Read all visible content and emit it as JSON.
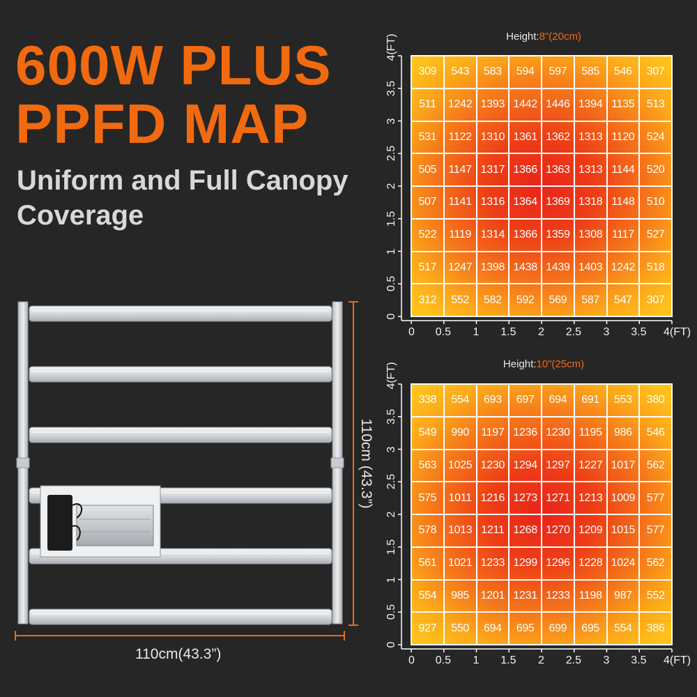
{
  "headline": {
    "line1": "600W PLUS",
    "line2": "PPFD MAP",
    "subtitle_line1": "Uniform and Full Canopy",
    "subtitle_line2": "Coverage"
  },
  "fixture": {
    "width_label": "110cm(43.3”)",
    "height_label": "110cm (43.3”)",
    "bar_count": 6,
    "colors": {
      "frame": "#c9ccd0",
      "bar": "#e6e8ea",
      "accent": "#f26a10",
      "driver_box": "#1a1a1a"
    }
  },
  "colors": {
    "background": "#262626",
    "accent": "#f26a10",
    "grid_line": "#ffffff"
  },
  "chart_data": [
    {
      "type": "heatmap",
      "title_prefix": "Height:",
      "title_value": "8\"(20cm)",
      "x_ticks": [
        "0",
        "0.5",
        "1",
        "1.5",
        "2",
        "2.5",
        "3",
        "3.5",
        "4(FT)"
      ],
      "y_ticks": [
        "0",
        "0.5",
        "1",
        "1.5",
        "2",
        "2.5",
        "3",
        "3.5",
        "4(FT)"
      ],
      "xlim": [
        0,
        4
      ],
      "ylim": [
        0,
        4
      ],
      "rows": [
        [
          "309",
          "543",
          "583",
          "594",
          "597",
          "585",
          "546",
          "307"
        ],
        [
          "511",
          "1242",
          "1393",
          "1442",
          "1446",
          "1394",
          "1135",
          "513"
        ],
        [
          "531",
          "1122",
          "1310",
          "1361",
          "1362",
          "1313",
          "1120",
          "524"
        ],
        [
          "505",
          "1147",
          "1317",
          "1366",
          "1363",
          "1313",
          "1144",
          "520"
        ],
        [
          "507",
          "1141",
          "1316",
          "1364",
          "1369",
          "1318",
          "1148",
          "510"
        ],
        [
          "522",
          "1119",
          "1314",
          "1366",
          "1359",
          "1308",
          "1117",
          "527"
        ],
        [
          "517",
          "1247",
          "1398",
          "1438",
          "1439",
          "1403",
          "1242",
          "518"
        ],
        [
          "312",
          "552",
          "582",
          "592",
          "569",
          "587",
          "547",
          "307"
        ]
      ]
    },
    {
      "type": "heatmap",
      "title_prefix": "Height:",
      "title_value": "10\"(25cm)",
      "x_ticks": [
        "0",
        "0.5",
        "1",
        "1.5",
        "2",
        "2.5",
        "3",
        "3.5",
        "4(FT)"
      ],
      "y_ticks": [
        "0",
        "0.5",
        "1",
        "1.5",
        "2",
        "2.5",
        "3",
        "3.5",
        "4(FT)"
      ],
      "xlim": [
        0,
        4
      ],
      "ylim": [
        0,
        4
      ],
      "rows": [
        [
          "338",
          "554",
          "693",
          "697",
          "694",
          "691",
          "553",
          "380"
        ],
        [
          "549",
          "990",
          "1197",
          "1236",
          "1230",
          "1195",
          "986",
          "546"
        ],
        [
          "563",
          "1025",
          "1230",
          "1294",
          "1297",
          "1227",
          "1017",
          "562"
        ],
        [
          "575",
          "1011",
          "1216",
          "1273",
          "1271",
          "1213",
          "1009",
          "577"
        ],
        [
          "578",
          "1013",
          "1211",
          "1268",
          "1270",
          "1209",
          "1015",
          "577"
        ],
        [
          "561",
          "1021",
          "1233",
          "1299",
          "1296",
          "1228",
          "1024",
          "562"
        ],
        [
          "554",
          "985",
          "1201",
          "1231",
          "1233",
          "1198",
          "987",
          "552"
        ],
        [
          "927",
          "550",
          "694",
          "695",
          "699",
          "695",
          "554",
          "386"
        ]
      ]
    }
  ]
}
